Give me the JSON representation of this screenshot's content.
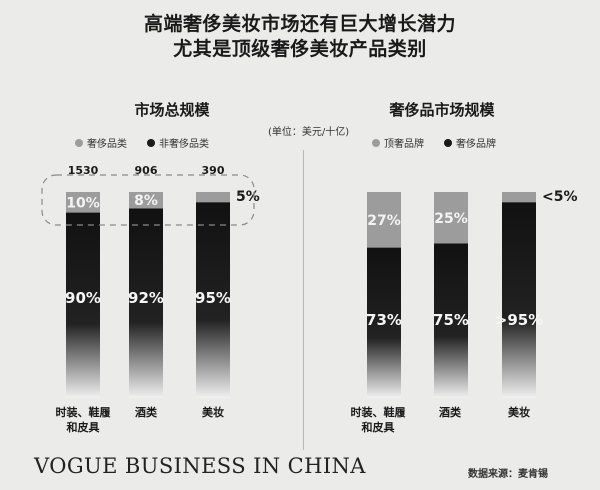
{
  "title_line1": "高端奢侈美妆市场还有巨大增长潜力",
  "title_line2": "尤其是顶级奢侈美妆产品类别",
  "unit": "(单位：美元/十亿)",
  "source": "数据来源：麦肯锡",
  "brand": "VOGUE BUSINESS IN CHINA",
  "colors": {
    "grey": "#9c9c9c",
    "black": "#1a1a1a",
    "background": "#ebebea"
  },
  "chart_data": [
    {
      "type": "bar",
      "stacked": true,
      "normalized": true,
      "title": "市场总规模",
      "categories": [
        "时装、鞋履\n和皮具",
        "酒类",
        "美妆"
      ],
      "totals": [
        1530,
        906,
        390
      ],
      "series": [
        {
          "name": "奢侈品类",
          "values": [
            10,
            8,
            5
          ],
          "labels": [
            "10%",
            "8%",
            "5%"
          ]
        },
        {
          "name": "非奢侈品类",
          "values": [
            90,
            92,
            95
          ],
          "labels": [
            "90%",
            "92%",
            "95%"
          ]
        }
      ],
      "ylim": [
        0,
        100
      ]
    },
    {
      "type": "bar",
      "stacked": true,
      "normalized": true,
      "title": "奢侈品市场规模",
      "categories": [
        "时装、鞋履\n和皮具",
        "酒类",
        "美妆"
      ],
      "series": [
        {
          "name": "顶奢品牌",
          "values": [
            27,
            25,
            5
          ],
          "labels": [
            "27%",
            "25%",
            "<5%"
          ]
        },
        {
          "name": "奢侈品牌",
          "values": [
            73,
            75,
            95
          ],
          "labels": [
            "73%",
            "75%",
            ">95%"
          ]
        }
      ],
      "ylim": [
        0,
        100
      ]
    }
  ]
}
